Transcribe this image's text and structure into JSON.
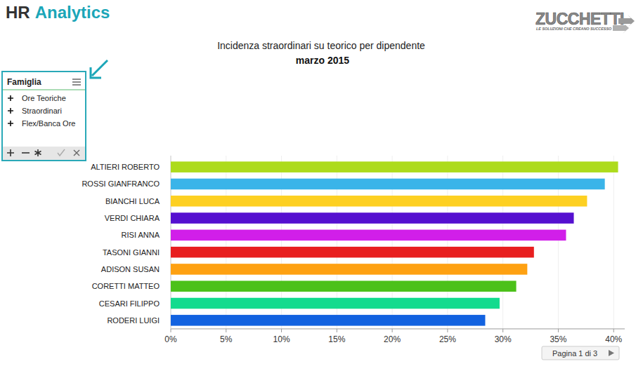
{
  "header": {
    "title": [
      "HR",
      "Analytics"
    ],
    "logo": "ZUCCHETTI",
    "tagline": "LE SOLUZIONI CHE CREANO SUCCESSO"
  },
  "filter_panel": {
    "title": "Famiglia",
    "items": [
      "Ore Teoriche",
      "Straordinari",
      "Flex/Banca Ore"
    ]
  },
  "pager": "Pagina 1 di 3",
  "chart_data": {
    "type": "bar",
    "orientation": "horizontal",
    "title": "Incidenza straordinari su teorico per dipendente",
    "subtitle": "marzo 2015",
    "categories": [
      "ALTIERI ROBERTO",
      "ROSSI GIANFRANCO",
      "BIANCHI LUCA",
      "VERDI CHIARA",
      "RISI ANNA",
      "TASONI GIANNI",
      "ADISON SUSAN",
      "CORETTI MATTEO",
      "CESARI FILIPPO",
      "RODERI LUIGI"
    ],
    "values": [
      40.4,
      39.2,
      37.6,
      36.4,
      35.7,
      32.8,
      32.2,
      31.2,
      29.7,
      28.4
    ],
    "colors": [
      "#addb1c",
      "#3ab4e9",
      "#fdd022",
      "#5510d0",
      "#d11fe9",
      "#e81f1f",
      "#fea112",
      "#4cc11a",
      "#13db8e",
      "#1262e0"
    ],
    "xlim": [
      0,
      41
    ],
    "xticks": [
      {
        "value": 0,
        "label": "0%"
      },
      {
        "value": 5,
        "label": "5%"
      },
      {
        "value": 10,
        "label": "10%"
      },
      {
        "value": 15,
        "label": "15%"
      },
      {
        "value": 20,
        "label": "20%"
      },
      {
        "value": 25,
        "label": "25%"
      },
      {
        "value": 30,
        "label": "30%"
      },
      {
        "value": 35,
        "label": "35%"
      },
      {
        "value": 40,
        "label": "40%"
      }
    ],
    "grid": true,
    "data_labels": false
  }
}
